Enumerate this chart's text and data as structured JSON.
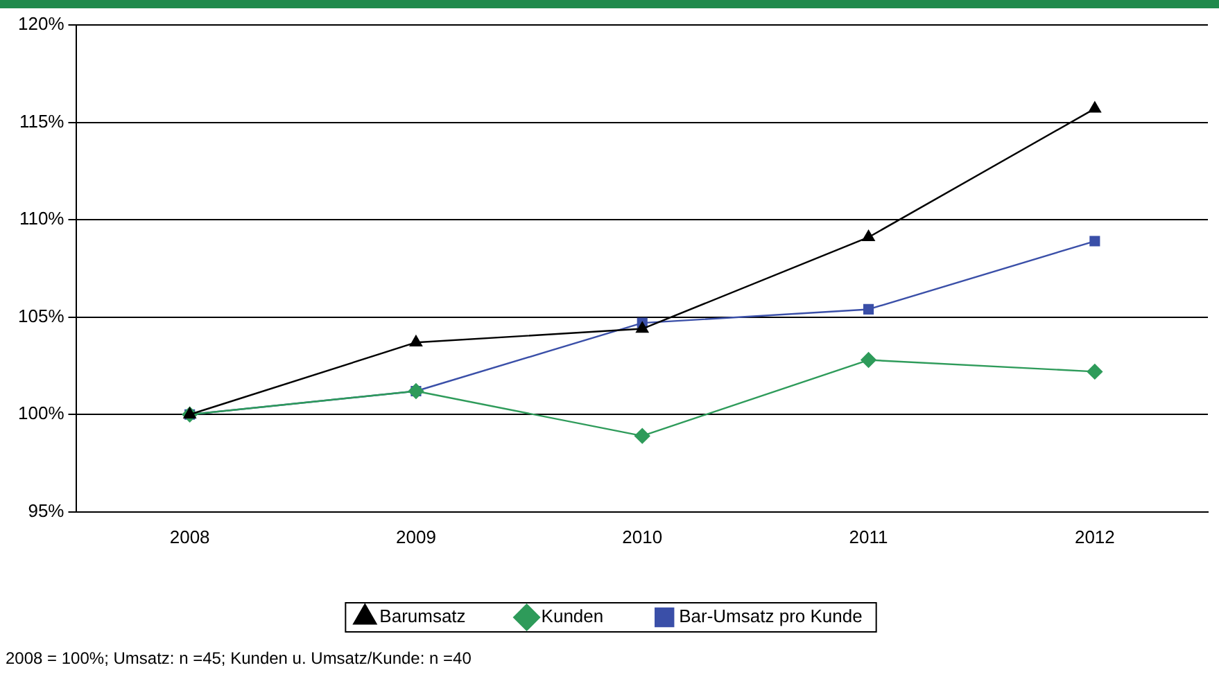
{
  "chart_data": {
    "type": "line",
    "categories": [
      "2008",
      "2009",
      "2010",
      "2011",
      "2012"
    ],
    "series": [
      {
        "name": "Barumsatz",
        "color": "#000000",
        "marker": "triangle",
        "values": [
          100,
          103.7,
          104.4,
          109.1,
          115.7
        ]
      },
      {
        "name": "Kunden",
        "color": "#2e9b5a",
        "marker": "diamond",
        "values": [
          100,
          101.2,
          98.9,
          102.8,
          102.2
        ]
      },
      {
        "name": "Bar-Umsatz pro Kunde",
        "color": "#3a4fa8",
        "marker": "square",
        "values": [
          100,
          101.2,
          104.7,
          105.4,
          108.9
        ]
      }
    ],
    "ylim": [
      95,
      120
    ],
    "yticks": [
      {
        "value": 95,
        "label": "95%"
      },
      {
        "value": 100,
        "label": "100%"
      },
      {
        "value": 105,
        "label": "105%"
      },
      {
        "value": 110,
        "label": "110%"
      },
      {
        "value": 115,
        "label": "115%"
      },
      {
        "value": 120,
        "label": "120%"
      }
    ],
    "grid": "y",
    "legend": "bottom",
    "line_style": "solid",
    "annotations": [
      "2008 = 100%; Umsatz: n =45; Kunden u. Umsatz/Kunde: n =40"
    ]
  }
}
